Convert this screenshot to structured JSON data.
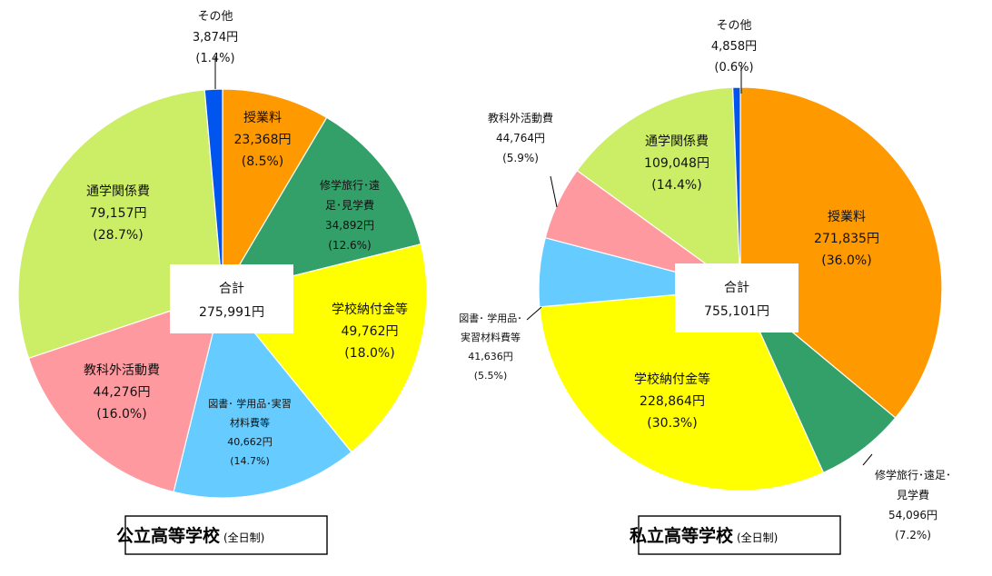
{
  "chart_data": [
    {
      "type": "pie",
      "title": "公立高等学校",
      "subtitle": "(全日制)",
      "total_label": "合計",
      "total_value": "275,991円",
      "slices": [
        {
          "name": "授業料",
          "amount": "23,368円",
          "percent_label": "(8.5%)",
          "value": 8.5,
          "color": "#FF9900"
        },
        {
          "name": "修学旅行･遠足･見学費",
          "amount": "34,892円",
          "percent_label": "(12.6%)",
          "value": 12.6,
          "color": "#33A06A"
        },
        {
          "name": "学校納付金等",
          "amount": "49,762円",
          "percent_label": "(18.0%)",
          "value": 18.0,
          "color": "#FFFF00"
        },
        {
          "name": "図書･ 学用品･実習材料費等",
          "amount": "40,662円",
          "percent_label": "(14.7%)",
          "value": 14.7,
          "color": "#66CCFF"
        },
        {
          "name": "教科外活動費",
          "amount": "44,276円",
          "percent_label": "(16.0%)",
          "value": 16.0,
          "color": "#FF99A0"
        },
        {
          "name": "通学関係費",
          "amount": "79,157円",
          "percent_label": "(28.7%)",
          "value": 28.7,
          "color": "#CCEE66"
        },
        {
          "name": "その他",
          "amount": "3,874円",
          "percent_label": "(1.4%)",
          "value": 1.4,
          "color": "#0055EE"
        }
      ]
    },
    {
      "type": "pie",
      "title": "私立高等学校",
      "subtitle": "(全日制)",
      "total_label": "合計",
      "total_value": "755,101円",
      "slices": [
        {
          "name": "授業料",
          "amount": "271,835円",
          "percent_label": "(36.0%)",
          "value": 36.0,
          "color": "#FF9900"
        },
        {
          "name": "修学旅行･遠足･見学費",
          "amount": "54,096円",
          "percent_label": "(7.2%)",
          "value": 7.2,
          "color": "#33A06A"
        },
        {
          "name": "学校納付金等",
          "amount": "228,864円",
          "percent_label": "(30.3%)",
          "value": 30.3,
          "color": "#FFFF00"
        },
        {
          "name": "図書･ 学用品･実習材料費等",
          "amount": "41,636円",
          "percent_label": "(5.5%)",
          "value": 5.5,
          "color": "#66CCFF"
        },
        {
          "name": "教科外活動費",
          "amount": "44,764円",
          "percent_label": "(5.9%)",
          "value": 5.9,
          "color": "#FF99A0"
        },
        {
          "name": "通学関係費",
          "amount": "109,048円",
          "percent_label": "(14.4%)",
          "value": 14.4,
          "color": "#CCEE66"
        },
        {
          "name": "その他",
          "amount": "4,858円",
          "percent_label": "(0.6%)",
          "value": 0.6,
          "color": "#0055EE"
        }
      ]
    }
  ]
}
